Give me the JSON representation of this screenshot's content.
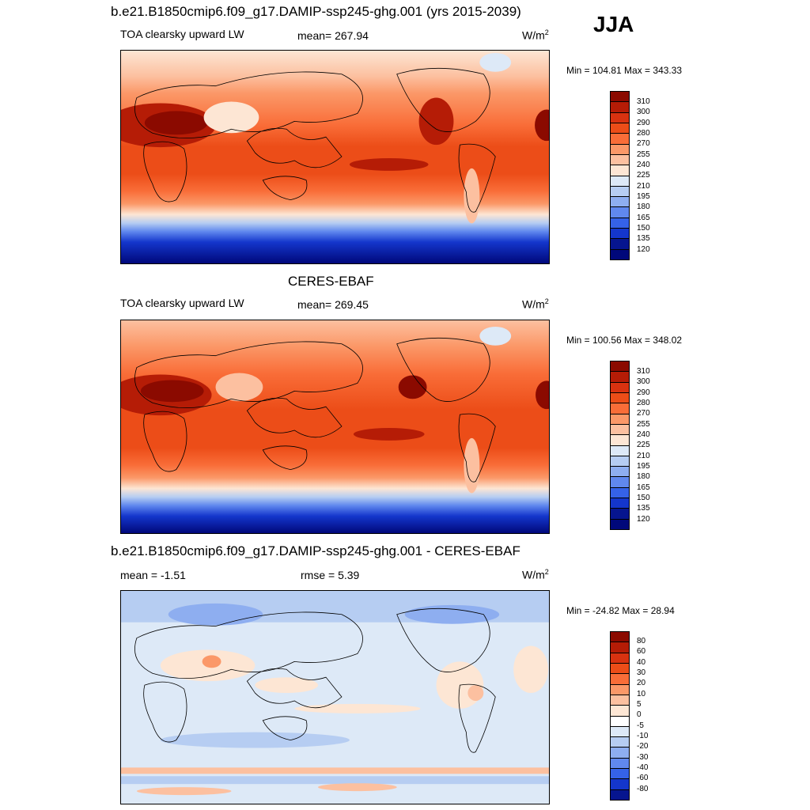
{
  "season": "JJA",
  "panels": [
    {
      "title": "b.e21.B1850cmip6.f09_g17.DAMIP-ssp245-ghg.001 (yrs 2015-2039)",
      "left_label": "TOA clearsky upward LW",
      "center_label": "mean= 267.94",
      "units": "W/m",
      "units_sup": "2",
      "minmax": "Min = 104.81 Max = 343.33",
      "colorbar_labels": [
        "310",
        "300",
        "290",
        "280",
        "270",
        "255",
        "240",
        "225",
        "210",
        "195",
        "180",
        "165",
        "150",
        "135",
        "120"
      ],
      "colorbar_colors": [
        "#8b0a00",
        "#b51c06",
        "#d83210",
        "#ec4d18",
        "#f96d38",
        "#fb9868",
        "#fcc0a0",
        "#fde6d4",
        "#dde9f7",
        "#b6cdf2",
        "#8eaef0",
        "#6088ee",
        "#3562e8",
        "#1436cc",
        "#06158f",
        "#00087a"
      ]
    },
    {
      "title": "CERES-EBAF",
      "left_label": "TOA clearsky upward LW",
      "center_label": "mean= 269.45",
      "units": "W/m",
      "units_sup": "2",
      "minmax": "Min = 100.56 Max = 348.02",
      "colorbar_labels": [
        "310",
        "300",
        "290",
        "280",
        "270",
        "255",
        "240",
        "225",
        "210",
        "195",
        "180",
        "165",
        "150",
        "135",
        "120"
      ],
      "colorbar_colors": [
        "#8b0a00",
        "#b51c06",
        "#d83210",
        "#ec4d18",
        "#f96d38",
        "#fb9868",
        "#fcc0a0",
        "#fde6d4",
        "#dde9f7",
        "#b6cdf2",
        "#8eaef0",
        "#6088ee",
        "#3562e8",
        "#1436cc",
        "#06158f",
        "#00087a"
      ]
    },
    {
      "title": "b.e21.B1850cmip6.f09_g17.DAMIP-ssp245-ghg.001 - CERES-EBAF",
      "left_label": "mean =  -1.51",
      "center_label": "rmse =   5.39",
      "units": "W/m",
      "units_sup": "2",
      "minmax": "Min = -24.82 Max =  28.94",
      "colorbar_labels": [
        "80",
        "60",
        "40",
        "30",
        "20",
        "10",
        "5",
        "0",
        "-5",
        "-10",
        "-20",
        "-30",
        "-40",
        "-60",
        "-80"
      ],
      "colorbar_colors": [
        "#8b0a00",
        "#b51c06",
        "#d83210",
        "#ec4d18",
        "#f96d38",
        "#fb9868",
        "#fcc0a0",
        "#fde6d4",
        "#ffffff",
        "#dde9f7",
        "#b6cdf2",
        "#8eaef0",
        "#6088ee",
        "#3562e8",
        "#1436cc",
        "#06158f"
      ]
    }
  ]
}
